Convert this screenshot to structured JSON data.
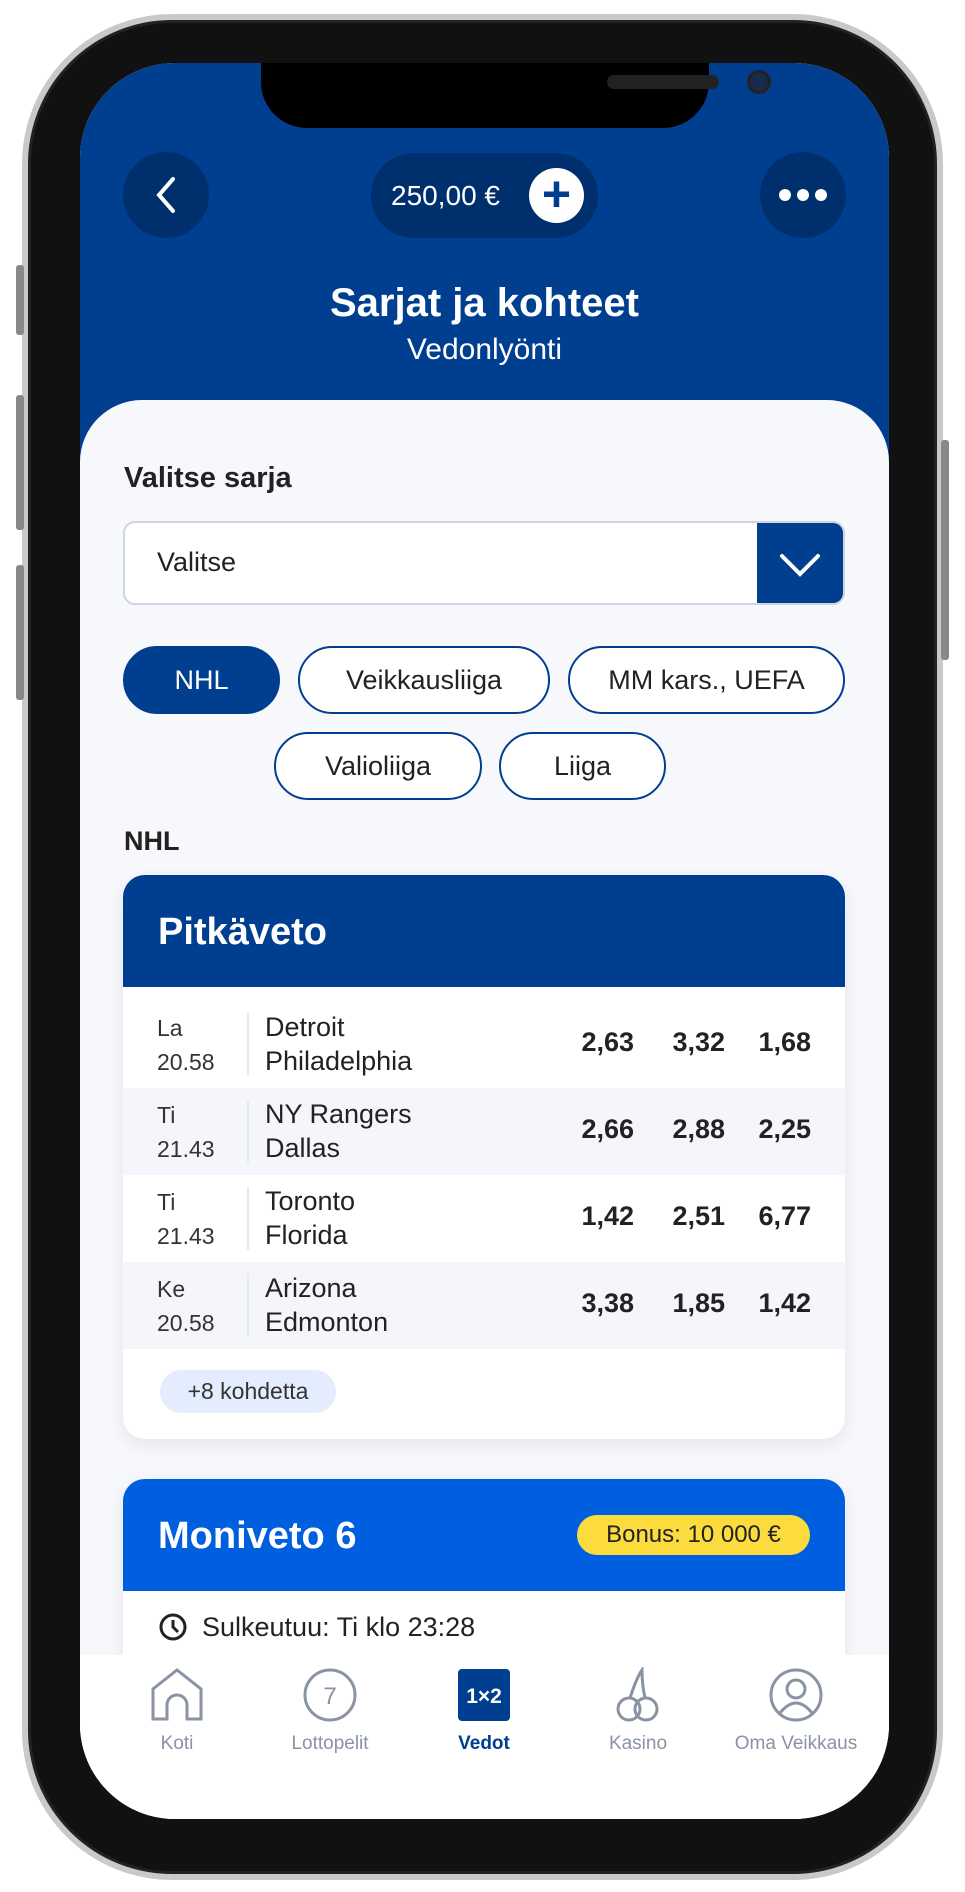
{
  "header": {
    "balance": "250,00 €",
    "title": "Sarjat ja kohteet",
    "subtitle": "Vedonlyönti",
    "icons": [
      "chevron-left-icon",
      "plus-icon",
      "more-icon"
    ]
  },
  "selector": {
    "label": "Valitse sarja",
    "value": "Valitse"
  },
  "chips": [
    {
      "label": "NHL",
      "active": true
    },
    {
      "label": "Veikkausliiga"
    },
    {
      "label": "MM kars., UEFA"
    },
    {
      "label": "Valioliiga"
    },
    {
      "label": "Liiga"
    }
  ],
  "section_label": "NHL",
  "pitkaveto": {
    "title": "Pitkäveto",
    "rows": [
      {
        "day": "La",
        "time": "20.58",
        "home": "Detroit",
        "away": "Philadelphia",
        "odds": [
          "2,63",
          "3,32",
          "1,68"
        ]
      },
      {
        "day": "Ti",
        "time": "21.43",
        "home": "NY Rangers",
        "away": "Dallas",
        "odds": [
          "2,66",
          "2,88",
          "2,25"
        ]
      },
      {
        "day": "Ti",
        "time": "21.43",
        "home": "Toronto",
        "away": "Florida",
        "odds": [
          "1,42",
          "2,51",
          "6,77"
        ]
      },
      {
        "day": "Ke",
        "time": "20.58",
        "home": "Arizona",
        "away": "Edmonton",
        "odds": [
          "3,38",
          "1,85",
          "1,42"
        ]
      }
    ],
    "more": "+8 kohdetta"
  },
  "moniveto": {
    "title": "Moniveto 6",
    "bonus": "Bonus: 10 000 €",
    "closes": "Sulkeutuu: Ti klo 23:28"
  },
  "nav": [
    {
      "label": "Koti"
    },
    {
      "label": "Lottopelit"
    },
    {
      "label": "Vedot",
      "active": true,
      "glyph": "1×2"
    },
    {
      "label": "Kasino"
    },
    {
      "label": "Oma Veikkaus"
    }
  ],
  "colors": {
    "primary": "#003e8f",
    "accent": "#005fdf",
    "bonus": "#fcdc3c"
  }
}
